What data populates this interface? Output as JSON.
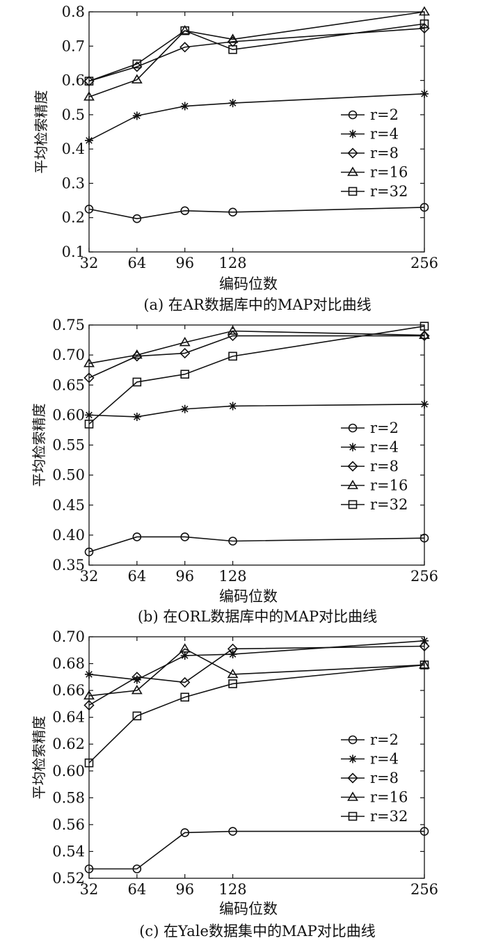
{
  "chart_data": [
    {
      "type": "line",
      "caption": "(a) 在AR数据库中的MAP对比曲线",
      "xlabel": "编码位数",
      "ylabel": "平均检索精度",
      "x": [
        32,
        64,
        96,
        128,
        256
      ],
      "xlim": [
        32,
        256
      ],
      "ylim": [
        0.1,
        0.8
      ],
      "yticks": [
        "0.1",
        "0.2",
        "0.3",
        "0.4",
        "0.5",
        "0.6",
        "0.7",
        "0.8"
      ],
      "legend_position": "center-right",
      "series": [
        {
          "name": "r=2",
          "marker": "circle",
          "values": [
            0.225,
            0.197,
            0.22,
            0.216,
            0.23
          ]
        },
        {
          "name": "r=4",
          "marker": "star",
          "values": [
            0.425,
            0.497,
            0.525,
            0.534,
            0.561
          ]
        },
        {
          "name": "r=8",
          "marker": "diamond",
          "values": [
            0.598,
            0.64,
            0.697,
            0.713,
            0.752
          ]
        },
        {
          "name": "r=16",
          "marker": "triangle",
          "values": [
            0.552,
            0.602,
            0.745,
            0.72,
            0.8
          ]
        },
        {
          "name": "r=32",
          "marker": "square",
          "values": [
            0.598,
            0.648,
            0.745,
            0.69,
            0.765
          ]
        }
      ]
    },
    {
      "type": "line",
      "caption": "(b) 在ORL数据库中的MAP对比曲线",
      "xlabel": "编码位数",
      "ylabel": "平均检索精度",
      "x": [
        32,
        64,
        96,
        128,
        256
      ],
      "xlim": [
        32,
        256
      ],
      "ylim": [
        0.35,
        0.75
      ],
      "yticks": [
        "0.35",
        "0.40",
        "0.45",
        "0.50",
        "0.55",
        "0.60",
        "0.65",
        "0.70",
        "0.75"
      ],
      "legend_position": "center-right",
      "series": [
        {
          "name": "r=2",
          "marker": "circle",
          "values": [
            0.372,
            0.397,
            0.397,
            0.39,
            0.395
          ]
        },
        {
          "name": "r=4",
          "marker": "star",
          "values": [
            0.6,
            0.597,
            0.61,
            0.615,
            0.618
          ]
        },
        {
          "name": "r=8",
          "marker": "diamond",
          "values": [
            0.662,
            0.698,
            0.703,
            0.732,
            0.732
          ]
        },
        {
          "name": "r=16",
          "marker": "triangle",
          "values": [
            0.686,
            0.7,
            0.721,
            0.74,
            0.733
          ]
        },
        {
          "name": "r=32",
          "marker": "square",
          "values": [
            0.585,
            0.655,
            0.668,
            0.698,
            0.748
          ]
        }
      ]
    },
    {
      "type": "line",
      "caption": "(c) 在Yale数据集中的MAP对比曲线",
      "xlabel": "编码位数",
      "ylabel": "平均检索精度",
      "x": [
        32,
        64,
        96,
        128,
        256
      ],
      "xlim": [
        32,
        256
      ],
      "ylim": [
        0.52,
        0.7
      ],
      "yticks": [
        "0.52",
        "0.54",
        "0.56",
        "0.58",
        "0.60",
        "0.62",
        "0.64",
        "0.66",
        "0.68",
        "0.70"
      ],
      "legend_position": "center-right",
      "series": [
        {
          "name": "r=2",
          "marker": "circle",
          "values": [
            0.527,
            0.527,
            0.554,
            0.555,
            0.555
          ]
        },
        {
          "name": "r=4",
          "marker": "star",
          "values": [
            0.672,
            0.668,
            0.686,
            0.687,
            0.697
          ]
        },
        {
          "name": "r=8",
          "marker": "diamond",
          "values": [
            0.649,
            0.67,
            0.666,
            0.691,
            0.693
          ]
        },
        {
          "name": "r=16",
          "marker": "triangle",
          "values": [
            0.656,
            0.66,
            0.691,
            0.672,
            0.679
          ]
        },
        {
          "name": "r=32",
          "marker": "square",
          "values": [
            0.606,
            0.641,
            0.655,
            0.665,
            0.679
          ]
        }
      ]
    }
  ]
}
